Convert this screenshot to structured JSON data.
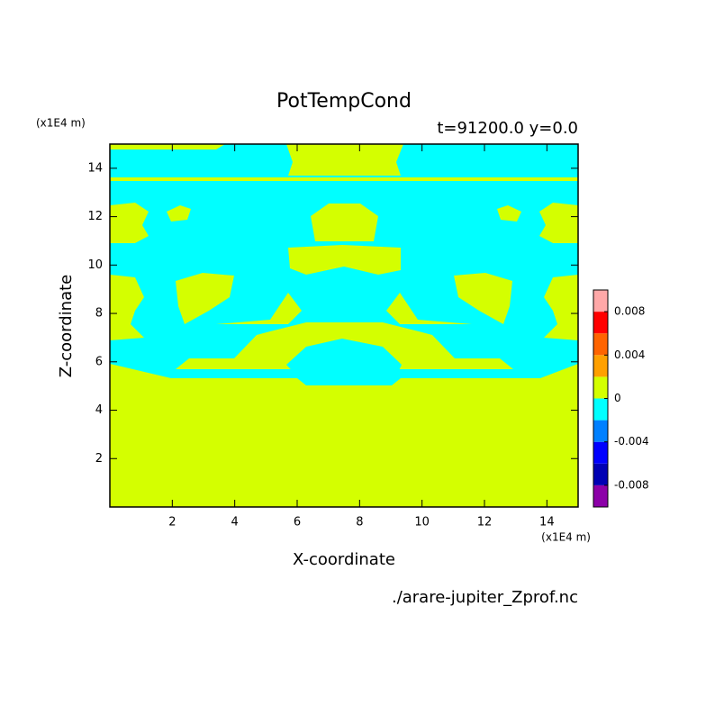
{
  "chart_data": {
    "type": "contour",
    "title": "PotTempCond",
    "subtitle": "t=91200.0 y=0.0",
    "x_label": "X-coordinate",
    "y_label": "Z-coordinate",
    "x_unit": "(x1E4 m)",
    "y_unit": "(x1E4 m)",
    "source": "./arare-jupiter_Zprof.nc",
    "xlim": [
      0,
      15
    ],
    "xticks": [
      2,
      4,
      6,
      8,
      10,
      12,
      14
    ],
    "ylim": [
      0,
      15
    ],
    "yticks": [
      2,
      4,
      6,
      8,
      10,
      12,
      14
    ],
    "levels": [
      -0.01,
      -0.008,
      -0.006,
      -0.004,
      -0.002,
      0,
      0.002,
      0.004,
      0.006,
      0.008,
      0.01
    ],
    "colors": [
      "#8c00a8",
      "#0000b4",
      "#0000ff",
      "#0080ff",
      "#00ffff",
      "#d4ff00",
      "#ffa000",
      "#ff6400",
      "#ff0000",
      "#ffa8a8"
    ],
    "colorbar_ticks": [
      0.008,
      0.004,
      0,
      -0.004,
      -0.008
    ]
  }
}
